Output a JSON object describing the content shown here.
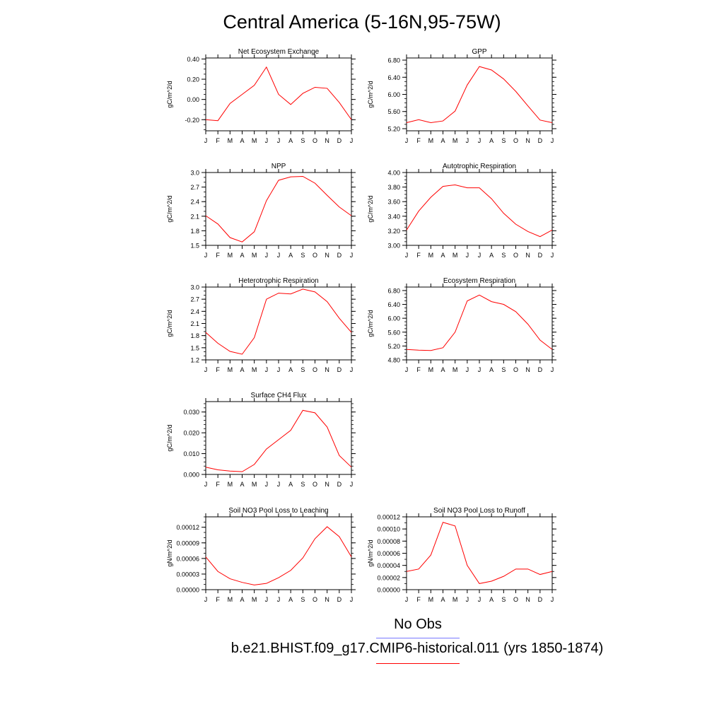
{
  "title": "Central America (5-16N,95-75W)",
  "colors": {
    "model_line": "#ff0000",
    "obs_line": "#7777ff"
  },
  "legend": {
    "obs_label": "No Obs",
    "model_label": "b.e21.BHIST.f09_g17.CMIP6-historical.011 (yrs 1850-1874)"
  },
  "chart_data": [
    {
      "type": "line",
      "title": "Net Ecosystem Exchange",
      "ylabel": "gC/m^2/d",
      "x": [
        "J",
        "F",
        "M",
        "A",
        "M",
        "J",
        "J",
        "A",
        "S",
        "O",
        "N",
        "D",
        "J"
      ],
      "series": [
        {
          "values": [
            -0.2,
            -0.21,
            -0.04,
            0.05,
            0.14,
            0.32,
            0.05,
            -0.05,
            0.06,
            0.12,
            0.11,
            -0.03,
            -0.2
          ]
        }
      ],
      "ylim": [
        -0.31,
        0.41
      ],
      "yticks": [
        -0.2,
        0.0,
        0.2,
        0.4
      ],
      "ytick_labels": [
        "-0.20",
        "0.00",
        "0.20",
        "0.40"
      ],
      "ymin_step": 0.05
    },
    {
      "type": "line",
      "title": "GPP",
      "ylabel": "gC/m^2/d",
      "x": [
        "J",
        "F",
        "M",
        "A",
        "M",
        "J",
        "J",
        "A",
        "S",
        "O",
        "N",
        "D",
        "J"
      ],
      "series": [
        {
          "values": [
            5.34,
            5.41,
            5.34,
            5.38,
            5.61,
            6.22,
            6.65,
            6.57,
            6.36,
            6.07,
            5.73,
            5.4,
            5.34
          ]
        }
      ],
      "ylim": [
        5.15,
        6.85
      ],
      "yticks": [
        5.2,
        5.6,
        6.0,
        6.4,
        6.8
      ],
      "ytick_labels": [
        "5.20",
        "5.60",
        "6.00",
        "6.40",
        "6.80"
      ],
      "ymin_step": 0.1
    },
    {
      "type": "line",
      "title": "NPP",
      "ylabel": "gC/m^2/d",
      "x": [
        "J",
        "F",
        "M",
        "A",
        "M",
        "J",
        "J",
        "A",
        "S",
        "O",
        "N",
        "D",
        "J"
      ],
      "series": [
        {
          "values": [
            2.11,
            1.94,
            1.66,
            1.57,
            1.78,
            2.42,
            2.84,
            2.91,
            2.92,
            2.78,
            2.53,
            2.29,
            2.11
          ]
        }
      ],
      "ylim": [
        1.5,
        3.0
      ],
      "yticks": [
        1.5,
        1.8,
        2.1,
        2.4,
        2.7,
        3.0
      ],
      "ytick_labels": [
        "1.5",
        "1.8",
        "2.1",
        "2.4",
        "2.7",
        "3.0"
      ],
      "ymin_step": 0.1
    },
    {
      "type": "line",
      "title": "Autotrophic Respiration",
      "ylabel": "gC/m^2/d",
      "x": [
        "J",
        "F",
        "M",
        "A",
        "M",
        "J",
        "J",
        "A",
        "S",
        "O",
        "N",
        "D",
        "J"
      ],
      "series": [
        {
          "values": [
            3.21,
            3.47,
            3.66,
            3.81,
            3.83,
            3.79,
            3.79,
            3.64,
            3.44,
            3.29,
            3.19,
            3.12,
            3.21
          ]
        }
      ],
      "ylim": [
        3.0,
        4.0
      ],
      "yticks": [
        3.0,
        3.2,
        3.4,
        3.6,
        3.8,
        4.0
      ],
      "ytick_labels": [
        "3.00",
        "3.20",
        "3.40",
        "3.60",
        "3.80",
        "4.00"
      ],
      "ymin_step": 0.05
    },
    {
      "type": "line",
      "title": "Heterotrophic Respiration",
      "ylabel": "gC/m^2/d",
      "x": [
        "J",
        "F",
        "M",
        "A",
        "M",
        "J",
        "J",
        "A",
        "S",
        "O",
        "N",
        "D",
        "J"
      ],
      "series": [
        {
          "values": [
            1.88,
            1.61,
            1.41,
            1.34,
            1.75,
            2.7,
            2.85,
            2.83,
            2.95,
            2.88,
            2.64,
            2.23,
            1.88
          ]
        }
      ],
      "ylim": [
        1.2,
        3.0
      ],
      "yticks": [
        1.2,
        1.5,
        1.8,
        2.1,
        2.4,
        2.7,
        3.0
      ],
      "ytick_labels": [
        "1.2",
        "1.5",
        "1.8",
        "2.1",
        "2.4",
        "2.7",
        "3.0"
      ],
      "ymin_step": 0.1
    },
    {
      "type": "line",
      "title": "Ecosystem Respiration",
      "ylabel": "gC/m^2/d",
      "x": [
        "J",
        "F",
        "M",
        "A",
        "M",
        "J",
        "J",
        "A",
        "S",
        "O",
        "N",
        "D",
        "J"
      ],
      "series": [
        {
          "values": [
            5.1,
            5.08,
            5.07,
            5.15,
            5.6,
            6.5,
            6.67,
            6.48,
            6.4,
            6.19,
            5.83,
            5.37,
            5.1
          ]
        }
      ],
      "ylim": [
        4.8,
        6.9
      ],
      "yticks": [
        4.8,
        5.2,
        5.6,
        6.0,
        6.4,
        6.8
      ],
      "ytick_labels": [
        "4.80",
        "5.20",
        "5.60",
        "6.00",
        "6.40",
        "6.80"
      ],
      "ymin_step": 0.1
    },
    {
      "type": "line",
      "title": "Surface CH4 Flux",
      "ylabel": "gC/m^2/d",
      "x": [
        "J",
        "F",
        "M",
        "A",
        "M",
        "J",
        "J",
        "A",
        "S",
        "O",
        "N",
        "D",
        "J"
      ],
      "series": [
        {
          "values": [
            0.0035,
            0.0022,
            0.0016,
            0.0013,
            0.0048,
            0.0122,
            0.0167,
            0.0212,
            0.0308,
            0.0296,
            0.0228,
            0.0091,
            0.0035
          ]
        }
      ],
      "ylim": [
        0.0,
        0.035
      ],
      "yticks": [
        0.0,
        0.01,
        0.02,
        0.03
      ],
      "ytick_labels": [
        "0.000",
        "0.010",
        "0.020",
        "0.030"
      ],
      "ymin_step": 0.002
    },
    {
      "type": "line",
      "title": "Soil NO3 Pool Loss to Leaching",
      "ylabel": "gN/m^2/d",
      "x": [
        "J",
        "F",
        "M",
        "A",
        "M",
        "J",
        "J",
        "A",
        "S",
        "O",
        "N",
        "D",
        "J"
      ],
      "series": [
        {
          "values": [
            6.3e-05,
            3.5e-05,
            2.1e-05,
            1.4e-05,
            9e-06,
            1.2e-05,
            2.3e-05,
            3.7e-05,
            6.1e-05,
            9.8e-05,
            0.000121,
            0.000102,
            6.3e-05
          ]
        }
      ],
      "ylim": [
        0.0,
        0.00014
      ],
      "yticks": [
        0.0,
        3e-05,
        6e-05,
        9e-05,
        0.00012
      ],
      "ytick_labels": [
        "0.00000",
        "0.00003",
        "0.00006",
        "0.00009",
        "0.00012"
      ],
      "ymin_step": 1e-05
    },
    {
      "type": "line",
      "title": "Soil NO3 Pool Loss to Runoff",
      "ylabel": "gN/m^2/d",
      "x": [
        "J",
        "F",
        "M",
        "A",
        "M",
        "J",
        "J",
        "A",
        "S",
        "O",
        "N",
        "D",
        "J"
      ],
      "series": [
        {
          "values": [
            3e-05,
            3.4e-05,
            5.7e-05,
            0.000111,
            0.000105,
            4e-05,
            1e-05,
            1.4e-05,
            2.2e-05,
            3.4e-05,
            3.4e-05,
            2.5e-05,
            3e-05
          ]
        }
      ],
      "ylim": [
        0.0,
        0.00012
      ],
      "yticks": [
        0.0,
        2e-05,
        4e-05,
        6e-05,
        8e-05,
        0.0001,
        0.00012
      ],
      "ytick_labels": [
        "0.00000",
        "0.00002",
        "0.00004",
        "0.00006",
        "0.00008",
        "0.00010",
        "0.00012"
      ],
      "ymin_step": 1e-05
    }
  ]
}
